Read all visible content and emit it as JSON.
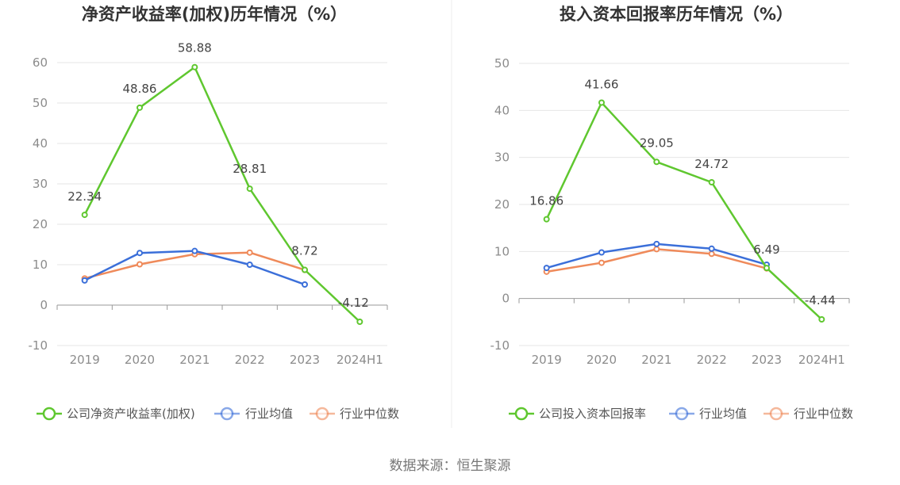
{
  "source": "数据来源：恒生聚源",
  "colors": {
    "company": "#5fc72f",
    "avg": "#3b6fd9",
    "median": "#ef8a5a",
    "grid": "#e6e6e6",
    "axis": "#999999"
  },
  "chart_data": [
    {
      "type": "line",
      "title": "净资产收益率(加权)历年情况（%）",
      "categories": [
        "2019",
        "2020",
        "2021",
        "2022",
        "2023",
        "2024H1"
      ],
      "ylim": [
        -10,
        60
      ],
      "yticks": [
        "60",
        "50",
        "40",
        "30",
        "20",
        "10",
        "0",
        "-10"
      ],
      "grid": true,
      "legend": "bottom",
      "series": [
        {
          "name": "公司净资产收益率(加权)",
          "key": "company",
          "values": [
            22.34,
            48.86,
            58.88,
            28.81,
            8.72,
            -4.12
          ],
          "labels": [
            "22.34",
            "48.86",
            "58.88",
            "28.81",
            "8.72",
            "-4.12"
          ]
        },
        {
          "name": "行业均值",
          "key": "avg",
          "values": [
            6.1,
            12.9,
            13.4,
            10.0,
            5.1,
            null
          ]
        },
        {
          "name": "行业中位数",
          "key": "median",
          "values": [
            6.6,
            10.1,
            12.6,
            13.0,
            8.7,
            null
          ]
        }
      ]
    },
    {
      "type": "line",
      "title": "投入资本回报率历年情况（%）",
      "categories": [
        "2019",
        "2020",
        "2021",
        "2022",
        "2023",
        "2024H1"
      ],
      "ylim": [
        -10,
        50
      ],
      "yticks": [
        "50",
        "40",
        "30",
        "20",
        "10",
        "0",
        "-10"
      ],
      "grid": true,
      "legend": "bottom",
      "series": [
        {
          "name": "公司投入资本回报率",
          "key": "company",
          "values": [
            16.86,
            41.66,
            29.05,
            24.72,
            6.49,
            -4.44
          ],
          "labels": [
            "16.86",
            "41.66",
            "29.05",
            "24.72",
            "6.49",
            "-4.44"
          ]
        },
        {
          "name": "行业均值",
          "key": "avg",
          "values": [
            6.5,
            9.8,
            11.6,
            10.6,
            7.2,
            null
          ]
        },
        {
          "name": "行业中位数",
          "key": "median",
          "values": [
            5.7,
            7.6,
            10.5,
            9.5,
            6.4,
            null
          ]
        }
      ]
    }
  ]
}
